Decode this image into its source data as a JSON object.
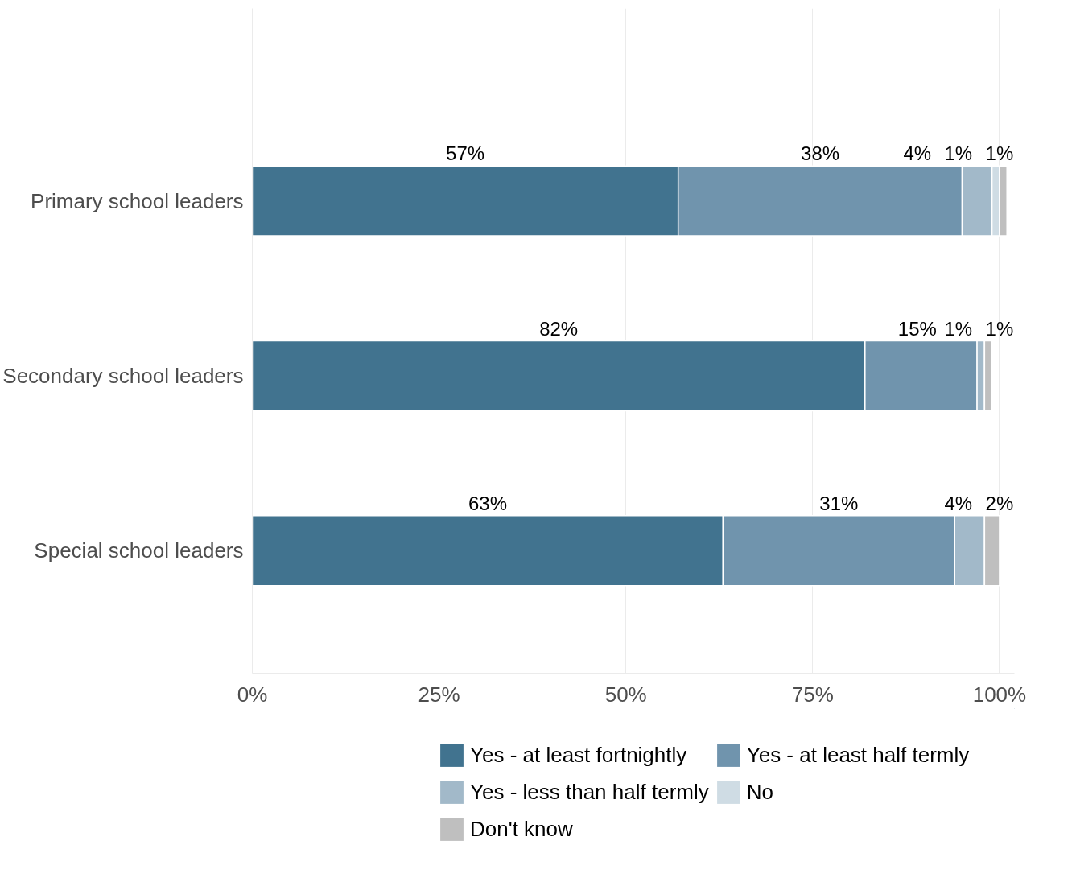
{
  "chart_data": {
    "type": "bar",
    "orientation": "horizontal",
    "stacked": true,
    "categories": [
      "Primary school leaders",
      "Secondary school leaders",
      "Special school leaders"
    ],
    "series": [
      {
        "name": "Yes - at least fortnightly",
        "color": "#41738f",
        "values": [
          57,
          82,
          63
        ],
        "value_labels": [
          "57%",
          "82%",
          "63%"
        ]
      },
      {
        "name": "Yes - at least half termly",
        "color": "#7094ad",
        "values": [
          38,
          15,
          31
        ],
        "value_labels": [
          "38%",
          "15%",
          "31%"
        ]
      },
      {
        "name": "Yes - less than half termly",
        "color": "#a2b9c9",
        "values": [
          4,
          1,
          4
        ],
        "value_labels": [
          "4%",
          "1%",
          "4%"
        ]
      },
      {
        "name": "No",
        "color": "#cfdce4",
        "values": [
          1,
          0,
          0
        ],
        "value_labels": [
          "1%",
          null,
          null
        ]
      },
      {
        "name": "Don't know",
        "color": "#bfbfbf",
        "values": [
          1,
          1,
          2
        ],
        "value_labels": [
          "1%",
          "1%",
          "2%"
        ]
      }
    ],
    "xlim": [
      0,
      102
    ],
    "xticks": [
      {
        "value": 0,
        "label": "0%"
      },
      {
        "value": 25,
        "label": "25%"
      },
      {
        "value": 50,
        "label": "50%"
      },
      {
        "value": 75,
        "label": "75%"
      },
      {
        "value": 100,
        "label": "100%"
      }
    ],
    "grid": "x",
    "legend": "bottom"
  }
}
